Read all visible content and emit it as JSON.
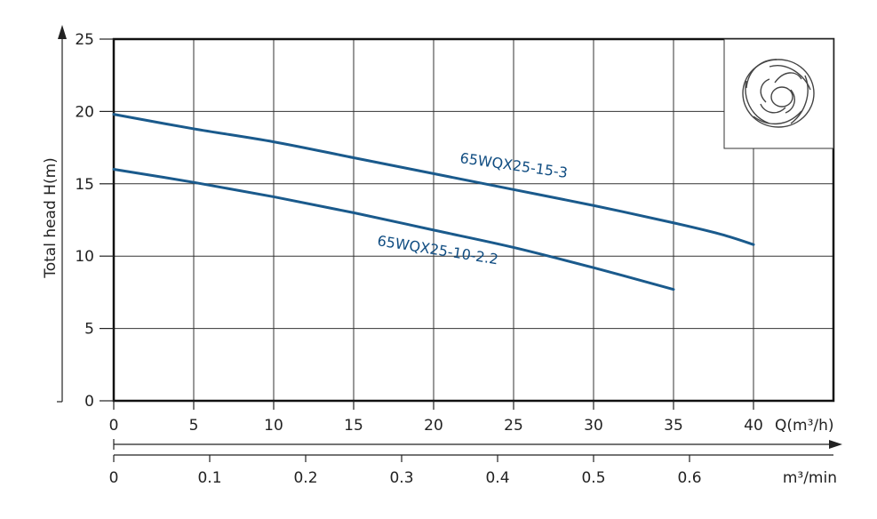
{
  "chart_data": {
    "type": "line",
    "ylabel": "Total head  H(m)",
    "xlabel": "Q(m³/h)",
    "x2label": "m³/min",
    "xlim": [
      0,
      45
    ],
    "ylim": [
      0,
      25
    ],
    "x_ticks": [
      "0",
      "5",
      "10",
      "15",
      "20",
      "25",
      "30",
      "35",
      "40"
    ],
    "x_tick_values": [
      0,
      5,
      10,
      15,
      20,
      25,
      30,
      35,
      40
    ],
    "y_ticks": [
      "0",
      "5",
      "10",
      "15",
      "20",
      "25"
    ],
    "y_tick_values": [
      0,
      5,
      10,
      15,
      20,
      25
    ],
    "x2_ticks": [
      "0",
      "0.1",
      "0.2",
      "0.3",
      "0.4",
      "0.5",
      "0.6"
    ],
    "x2_tick_values": [
      0,
      0.1,
      0.2,
      0.3,
      0.4,
      0.5,
      0.6
    ],
    "grid": true,
    "series": [
      {
        "name": "65WQX25-15-3",
        "color": "#1a5a8c",
        "x": [
          0,
          5,
          10,
          15,
          20,
          25,
          30,
          35,
          38,
          40
        ],
        "y": [
          19.8,
          18.8,
          17.9,
          16.8,
          15.7,
          14.6,
          13.5,
          12.3,
          11.5,
          10.8
        ]
      },
      {
        "name": "65WQX25-10-2.2",
        "color": "#1a5a8c",
        "x": [
          0,
          5,
          10,
          15,
          20,
          25,
          30,
          35
        ],
        "y": [
          16.0,
          15.1,
          14.1,
          13.0,
          11.8,
          10.6,
          9.2,
          7.7
        ]
      }
    ],
    "inset_image": "impeller-icon"
  }
}
